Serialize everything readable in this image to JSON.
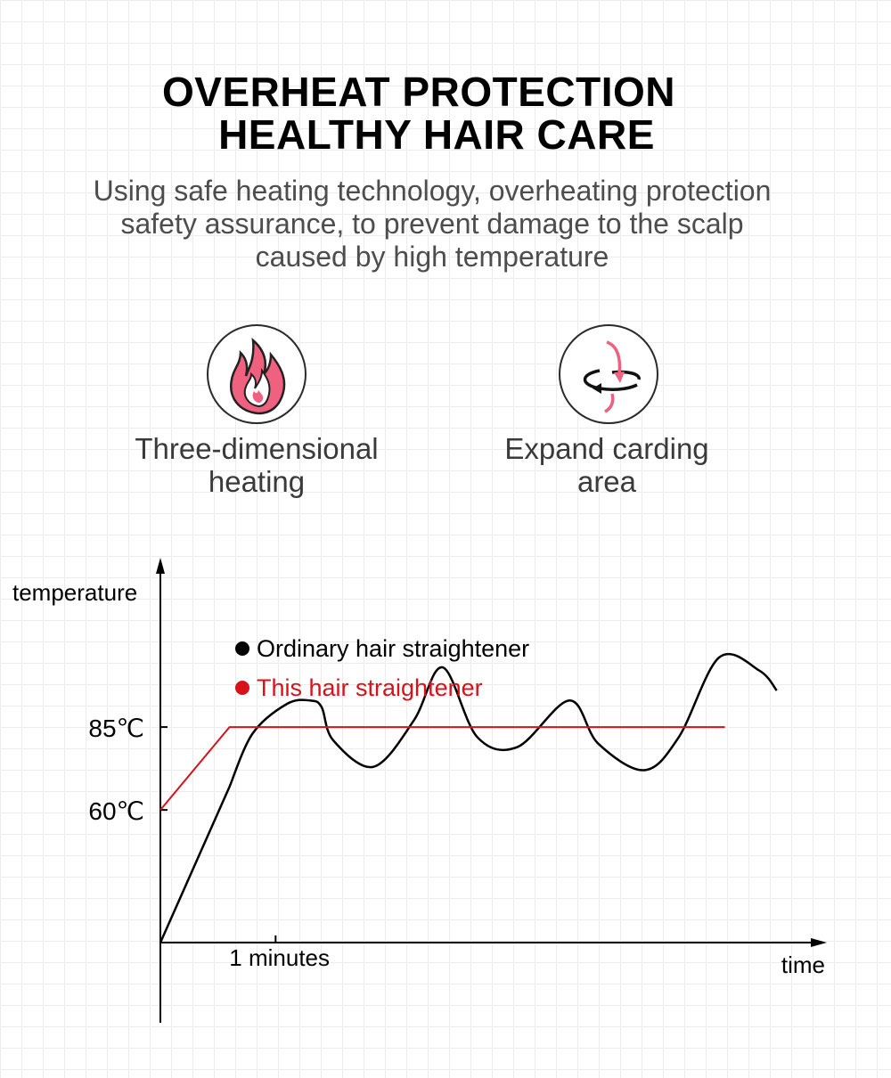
{
  "heading": {
    "line1": "OVERHEAT PROTECTION",
    "line2": "HEALTHY HAIR CARE"
  },
  "subtitle": {
    "line1": "Using safe heating technology, overheating protection",
    "line2": "safety assurance, to prevent damage to the scalp",
    "line3": "caused by high temperature"
  },
  "features": [
    {
      "icon": "flame-icon",
      "line1": "Three-dimensional",
      "line2": "heating"
    },
    {
      "icon": "rotate-arrows-icon",
      "line1": "Expand carding",
      "line2": "area"
    }
  ],
  "colors": {
    "accent_red": "#d7121b",
    "icon_pink": "#f0607f",
    "text_gray": "#4d4d4d"
  },
  "chart_data": {
    "type": "line",
    "xlabel": "time",
    "ylabel": "temperature",
    "x_tick_labels": [
      {
        "x": 1,
        "label": "1 minutes"
      }
    ],
    "y_tick_labels": [
      {
        "y": 85,
        "label": "85℃"
      },
      {
        "y": 60,
        "label": "60℃"
      }
    ],
    "xlim": [
      0,
      5.8
    ],
    "ylim": [
      20,
      135
    ],
    "legend_position": "top-left",
    "series": [
      {
        "name": "Ordinary hair straightener",
        "color": "#000000",
        "points": [
          [
            0,
            20
          ],
          [
            0.6,
            67
          ],
          [
            0.8,
            83
          ],
          [
            1.1,
            92
          ],
          [
            1.3,
            93
          ],
          [
            1.4,
            91
          ],
          [
            1.5,
            81
          ],
          [
            1.85,
            73
          ],
          [
            2.2,
            87
          ],
          [
            2.45,
            103
          ],
          [
            2.75,
            82
          ],
          [
            3.1,
            79
          ],
          [
            3.55,
            93
          ],
          [
            3.8,
            80
          ],
          [
            4.2,
            72
          ],
          [
            4.5,
            82
          ],
          [
            4.85,
            106
          ],
          [
            5.2,
            102
          ],
          [
            5.35,
            96
          ]
        ]
      },
      {
        "name": "This hair straightener",
        "color": "#d7121b",
        "points": [
          [
            0,
            60
          ],
          [
            0.6,
            85
          ],
          [
            4.9,
            85
          ]
        ]
      }
    ]
  }
}
